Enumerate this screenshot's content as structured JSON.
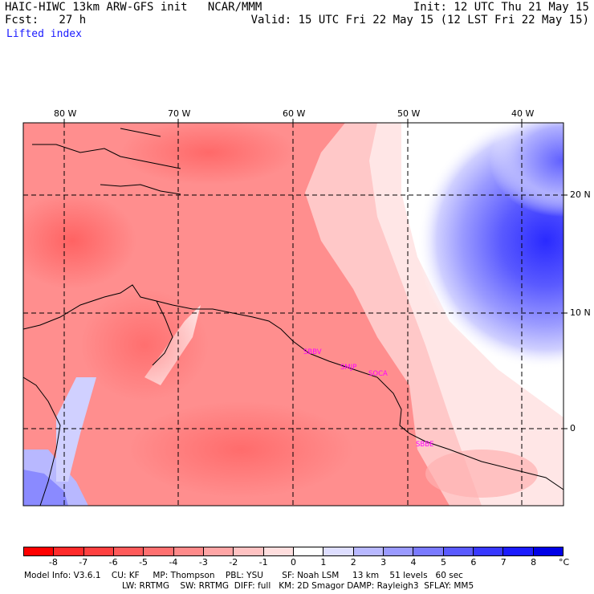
{
  "header": {
    "model_line": "HAIC-HIWC 13km ARW-GFS init   NCAR/MMM",
    "fcst_line": "Fcst:   27 h",
    "variable": "Lifted index",
    "init_line": "Init: 12 UTC Thu 21 May 15",
    "valid_line": "Valid: 15 UTC Fri 22 May 15 (12 LST Fri 22 May 15)"
  },
  "axes": {
    "lon_labels": [
      "80 W",
      "70 W",
      "60 W",
      "50 W",
      "40 W"
    ],
    "lat_labels": [
      "20 N",
      "10 N",
      "0"
    ]
  },
  "stations": [
    "SBBV",
    "SMJP",
    "SOCA",
    "SBBE"
  ],
  "colorbar": {
    "ticks": [
      "-8",
      "-7",
      "-6",
      "-5",
      "-4",
      "-3",
      "-2",
      "-1",
      "0",
      "1",
      "2",
      "3",
      "4",
      "5",
      "6",
      "7",
      "8"
    ],
    "unit": "°C",
    "colors": [
      "#ff0000",
      "#ff2a2a",
      "#ff4040",
      "#ff5a5a",
      "#ff7070",
      "#ff8a8a",
      "#ffa5a5",
      "#ffc2c2",
      "#ffdede",
      "#ffffff",
      "#dedeff",
      "#b8b8ff",
      "#9a9aff",
      "#7a7aff",
      "#5a5aff",
      "#3838ff",
      "#1c1cff",
      "#0000e6"
    ]
  },
  "footer": {
    "line1": "Model Info: V3.6.1    CU: KF     MP: Thompson    PBL: YSU       SF: Noah LSM     13 km    51 levels   60 sec",
    "line2": "LW: RRTMG    SW: RRTMG  DIFF: full   KM: 2D Smagor DAMP: Rayleigh3  SFLAY: MM5"
  }
}
